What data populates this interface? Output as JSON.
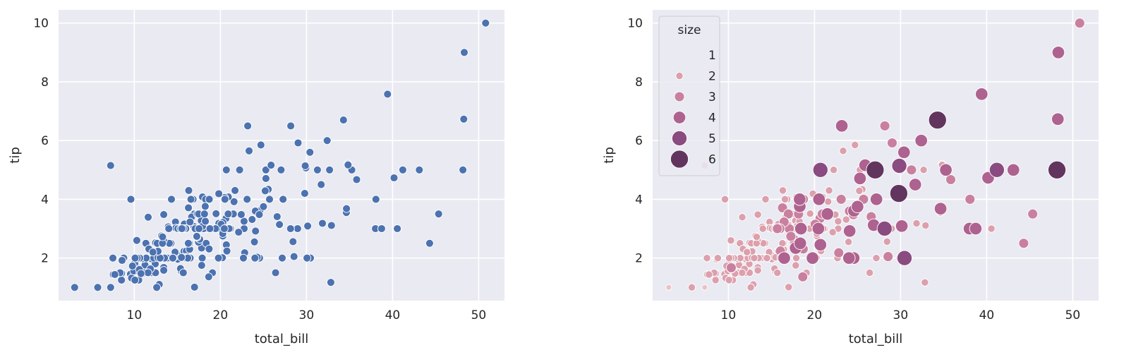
{
  "chart_data": [
    {
      "type": "scatter",
      "xlabel": "total_bill",
      "ylabel": "tip",
      "xlim": [
        1.2,
        53.0
      ],
      "ylim": [
        0.55,
        10.45
      ],
      "xticks": [
        "10",
        "20",
        "30",
        "40",
        "50"
      ],
      "yticks": [
        "2",
        "4",
        "6",
        "8",
        "10"
      ],
      "grid": true,
      "background": "#eaeaf2",
      "color": "#4c72b0",
      "x": [
        16.99,
        10.34,
        21.01,
        23.68,
        24.59,
        25.29,
        8.77,
        26.88,
        15.04,
        14.78,
        10.27,
        35.26,
        15.42,
        18.43,
        14.83,
        21.58,
        10.33,
        16.29,
        16.97,
        20.65,
        17.92,
        20.29,
        15.77,
        39.42,
        19.82,
        17.81,
        13.37,
        12.69,
        21.7,
        19.65,
        9.55,
        18.35,
        15.06,
        20.69,
        17.78,
        24.06,
        16.31,
        16.93,
        18.69,
        31.27,
        16.04,
        17.46,
        13.94,
        9.68,
        30.4,
        18.29,
        22.23,
        32.4,
        28.55,
        18.04,
        12.54,
        10.29,
        34.81,
        9.94,
        25.56,
        19.49,
        38.01,
        26.41,
        11.24,
        48.27,
        20.29,
        13.81,
        11.02,
        18.29,
        17.59,
        20.08,
        16.45,
        3.07,
        20.23,
        15.01,
        12.02,
        17.07,
        26.86,
        25.28,
        14.73,
        10.51,
        17.92,
        27.2,
        22.76,
        17.29,
        19.44,
        16.66,
        10.07,
        32.68,
        15.98,
        34.83,
        13.03,
        18.28,
        24.71,
        21.16,
        28.97,
        22.49,
        5.75,
        16.32,
        22.75,
        40.17,
        27.28,
        12.03,
        21.01,
        12.46,
        11.35,
        15.38,
        44.3,
        22.42,
        20.92,
        15.36,
        20.49,
        25.21,
        18.24,
        14.31,
        14.0,
        7.25,
        38.07,
        23.95,
        25.71,
        17.31,
        29.93,
        10.65,
        12.43,
        24.08,
        11.69,
        13.42,
        14.26,
        15.95,
        12.48,
        29.8,
        8.52,
        14.52,
        11.38,
        22.82,
        19.08,
        20.27,
        11.17,
        12.26,
        18.26,
        8.51,
        10.33,
        14.15,
        16.0,
        13.16,
        17.47,
        34.3,
        41.19,
        27.05,
        16.43,
        8.35,
        18.64,
        11.87,
        9.78,
        7.51,
        14.07,
        13.13,
        17.26,
        24.55,
        19.77,
        29.85,
        48.17,
        25.0,
        13.39,
        16.49,
        21.5,
        12.66,
        16.21,
        13.81,
        17.51,
        24.52,
        20.76,
        31.71,
        10.59,
        10.63,
        50.81,
        15.81,
        7.25,
        31.85,
        16.82,
        32.9,
        17.89,
        14.48,
        9.6,
        34.63,
        34.65,
        23.33,
        45.35,
        23.17,
        40.55,
        20.69,
        20.9,
        30.46,
        18.15,
        23.1,
        15.69,
        19.81,
        28.44,
        15.48,
        16.58,
        7.56,
        10.34,
        43.11,
        13.0,
        13.51,
        18.71,
        12.74,
        13.0,
        16.4,
        20.53,
        16.47,
        26.59,
        38.73,
        24.27,
        12.76,
        30.06,
        25.89,
        48.33,
        13.27,
        28.17,
        12.9,
        28.15,
        11.59,
        7.74,
        30.14,
        12.16,
        13.42,
        8.58,
        15.98,
        13.42,
        16.27,
        10.09,
        20.45,
        13.28,
        22.12,
        24.01,
        15.69,
        11.61,
        10.77,
        15.53,
        10.07,
        12.6,
        32.83,
        35.83,
        29.03,
        27.18,
        22.67,
        17.82,
        18.78
      ],
      "y": [
        1.01,
        1.66,
        3.5,
        3.31,
        3.61,
        4.71,
        2.0,
        3.12,
        1.96,
        3.23,
        1.71,
        5.0,
        1.57,
        3.0,
        3.02,
        3.92,
        1.67,
        3.71,
        3.5,
        3.35,
        4.08,
        2.75,
        2.23,
        7.58,
        3.18,
        2.34,
        2.0,
        2.0,
        4.3,
        3.0,
        1.45,
        2.5,
        3.0,
        2.45,
        3.27,
        3.6,
        2.0,
        3.07,
        2.31,
        5.0,
        2.24,
        2.54,
        3.06,
        1.32,
        5.6,
        3.0,
        5.0,
        6.0,
        2.05,
        3.0,
        2.5,
        2.6,
        5.2,
        1.56,
        4.34,
        3.51,
        3.0,
        1.5,
        1.76,
        6.73,
        3.21,
        2.0,
        1.98,
        3.76,
        2.64,
        3.15,
        2.47,
        1.0,
        2.01,
        2.09,
        1.97,
        3.0,
        3.14,
        5.0,
        2.2,
        1.25,
        3.08,
        4.0,
        3.0,
        2.71,
        3.0,
        3.4,
        1.83,
        5.0,
        2.03,
        5.17,
        2.0,
        4.0,
        5.85,
        3.0,
        3.0,
        3.5,
        1.0,
        4.3,
        3.25,
        4.73,
        4.0,
        1.5,
        3.0,
        1.5,
        2.5,
        3.0,
        2.5,
        3.48,
        4.08,
        1.64,
        4.06,
        4.29,
        3.76,
        4.0,
        3.0,
        1.0,
        4.0,
        2.55,
        4.0,
        3.5,
        5.07,
        1.5,
        1.8,
        2.92,
        2.31,
        1.68,
        2.5,
        2.0,
        2.52,
        4.2,
        1.48,
        2.0,
        2.0,
        2.18,
        1.5,
        2.83,
        1.5,
        2.0,
        3.25,
        1.25,
        2.0,
        2.0,
        2.0,
        2.75,
        3.5,
        6.7,
        5.0,
        5.0,
        2.3,
        1.5,
        1.36,
        1.63,
        1.73,
        2.0,
        2.5,
        2.0,
        2.74,
        2.0,
        2.0,
        5.14,
        5.0,
        3.75,
        2.61,
        2.0,
        3.5,
        2.5,
        2.0,
        2.0,
        3.0,
        3.48,
        2.24,
        4.5,
        1.61,
        2.0,
        10.0,
        3.16,
        5.15,
        3.18,
        4.0,
        3.11,
        2.0,
        2.0,
        4.0,
        3.55,
        3.68,
        5.65,
        3.5,
        6.5,
        3.0,
        5.0,
        3.5,
        2.0,
        3.5,
        4.0,
        1.5,
        4.19,
        2.56,
        2.02,
        4.0,
        1.44,
        2.0,
        5.0,
        2.0,
        2.0,
        4.0,
        2.01,
        2.0,
        2.5,
        4.0,
        3.23,
        3.41,
        3.0,
        2.03,
        2.23,
        2.0,
        5.16,
        9.0,
        2.5,
        6.5,
        1.1,
        3.0,
        1.5,
        1.44,
        3.09,
        2.2,
        3.48,
        1.92,
        3.0,
        1.58,
        2.5,
        2.0,
        3.0,
        2.72,
        2.88,
        2.0,
        3.0,
        3.39,
        1.47,
        3.0,
        1.25,
        1.0,
        1.17,
        4.67,
        5.92,
        2.0,
        2.0,
        1.75,
        3.0
      ]
    },
    {
      "type": "scatter",
      "xlabel": "total_bill",
      "ylabel": "tip",
      "xlim": [
        1.2,
        53.0
      ],
      "ylim": [
        0.55,
        10.45
      ],
      "xticks": [
        "10",
        "20",
        "30",
        "40",
        "50"
      ],
      "yticks": [
        "2",
        "4",
        "6",
        "8",
        "10"
      ],
      "grid": true,
      "background": "#eaeaf2",
      "hue": "size",
      "legend": {
        "title": "size",
        "placement": "upper-left",
        "labels": [
          "1",
          "2",
          "3",
          "4",
          "5",
          "6"
        ]
      },
      "size_colors": {
        "1": "#ecc1c3",
        "2": "#dca0ad",
        "3": "#c9809e",
        "4": "#ae628f",
        "5": "#8a4b80",
        "6": "#62355f"
      },
      "x": [
        16.99,
        10.34,
        21.01,
        23.68,
        24.59,
        25.29,
        8.77,
        26.88,
        15.04,
        14.78,
        10.27,
        35.26,
        15.42,
        18.43,
        14.83,
        21.58,
        10.33,
        16.29,
        16.97,
        20.65,
        17.92,
        20.29,
        15.77,
        39.42,
        19.82,
        17.81,
        13.37,
        12.69,
        21.7,
        19.65,
        9.55,
        18.35,
        15.06,
        20.69,
        17.78,
        24.06,
        16.31,
        16.93,
        18.69,
        31.27,
        16.04,
        17.46,
        13.94,
        9.68,
        30.4,
        18.29,
        22.23,
        32.4,
        28.55,
        18.04,
        12.54,
        10.29,
        34.81,
        9.94,
        25.56,
        19.49,
        38.01,
        26.41,
        11.24,
        48.27,
        20.29,
        13.81,
        11.02,
        18.29,
        17.59,
        20.08,
        16.45,
        3.07,
        20.23,
        15.01,
        12.02,
        17.07,
        26.86,
        25.28,
        14.73,
        10.51,
        17.92,
        27.2,
        22.76,
        17.29,
        19.44,
        16.66,
        10.07,
        32.68,
        15.98,
        34.83,
        13.03,
        18.28,
        24.71,
        21.16,
        28.97,
        22.49,
        5.75,
        16.32,
        22.75,
        40.17,
        27.28,
        12.03,
        21.01,
        12.46,
        11.35,
        15.38,
        44.3,
        22.42,
        20.92,
        15.36,
        20.49,
        25.21,
        18.24,
        14.31,
        14.0,
        7.25,
        38.07,
        23.95,
        25.71,
        17.31,
        29.93,
        10.65,
        12.43,
        24.08,
        11.69,
        13.42,
        14.26,
        15.95,
        12.48,
        29.8,
        8.52,
        14.52,
        11.38,
        22.82,
        19.08,
        20.27,
        11.17,
        12.26,
        18.26,
        8.51,
        10.33,
        14.15,
        16.0,
        13.16,
        17.47,
        34.3,
        41.19,
        27.05,
        16.43,
        8.35,
        18.64,
        11.87,
        9.78,
        7.51,
        14.07,
        13.13,
        17.26,
        24.55,
        19.77,
        29.85,
        48.17,
        25.0,
        13.39,
        16.49,
        21.5,
        12.66,
        16.21,
        13.81,
        17.51,
        24.52,
        20.76,
        31.71,
        10.59,
        10.63,
        50.81,
        15.81,
        7.25,
        31.85,
        16.82,
        32.9,
        17.89,
        14.48,
        9.6,
        34.63,
        34.65,
        23.33,
        45.35,
        23.17,
        40.55,
        20.69,
        20.9,
        30.46,
        18.15,
        23.1,
        15.69,
        19.81,
        28.44,
        15.48,
        16.58,
        7.56,
        10.34,
        43.11,
        13.0,
        13.51,
        18.71,
        12.74,
        13.0,
        16.4,
        20.53,
        16.47,
        26.59,
        38.73,
        24.27,
        12.76,
        30.06,
        25.89,
        48.33,
        13.27,
        28.17,
        12.9,
        28.15,
        11.59,
        7.74,
        30.14,
        12.16,
        13.42,
        8.58,
        15.98,
        13.42,
        16.27,
        10.09,
        20.45,
        13.28,
        22.12,
        24.01,
        15.69,
        11.61,
        10.77,
        15.53,
        10.07,
        12.6,
        32.83,
        35.83,
        29.03,
        27.18,
        22.67,
        17.82,
        18.78
      ],
      "y": [
        1.01,
        1.66,
        3.5,
        3.31,
        3.61,
        4.71,
        2.0,
        3.12,
        1.96,
        3.23,
        1.71,
        5.0,
        1.57,
        3.0,
        3.02,
        3.92,
        1.67,
        3.71,
        3.5,
        3.35,
        4.08,
        2.75,
        2.23,
        7.58,
        3.18,
        2.34,
        2.0,
        2.0,
        4.3,
        3.0,
        1.45,
        2.5,
        3.0,
        2.45,
        3.27,
        3.6,
        2.0,
        3.07,
        2.31,
        5.0,
        2.24,
        2.54,
        3.06,
        1.32,
        5.6,
        3.0,
        5.0,
        6.0,
        2.05,
        3.0,
        2.5,
        2.6,
        5.2,
        1.56,
        4.34,
        3.51,
        3.0,
        1.5,
        1.76,
        6.73,
        3.21,
        2.0,
        1.98,
        3.76,
        2.64,
        3.15,
        2.47,
        1.0,
        2.01,
        2.09,
        1.97,
        3.0,
        3.14,
        5.0,
        2.2,
        1.25,
        3.08,
        4.0,
        3.0,
        2.71,
        3.0,
        3.4,
        1.83,
        5.0,
        2.03,
        5.17,
        2.0,
        4.0,
        5.85,
        3.0,
        3.0,
        3.5,
        1.0,
        4.3,
        3.25,
        4.73,
        4.0,
        1.5,
        3.0,
        1.5,
        2.5,
        3.0,
        2.5,
        3.48,
        4.08,
        1.64,
        4.06,
        4.29,
        3.76,
        4.0,
        3.0,
        1.0,
        4.0,
        2.55,
        4.0,
        3.5,
        5.07,
        1.5,
        1.8,
        2.92,
        2.31,
        1.68,
        2.5,
        2.0,
        2.52,
        4.2,
        1.48,
        2.0,
        2.0,
        2.18,
        1.5,
        2.83,
        1.5,
        2.0,
        3.25,
        1.25,
        2.0,
        2.0,
        2.0,
        2.75,
        3.5,
        6.7,
        5.0,
        5.0,
        2.3,
        1.5,
        1.36,
        1.63,
        1.73,
        2.0,
        2.5,
        2.0,
        2.74,
        2.0,
        2.0,
        5.14,
        5.0,
        3.75,
        2.61,
        2.0,
        3.5,
        2.5,
        2.0,
        2.0,
        3.0,
        3.48,
        2.24,
        4.5,
        1.61,
        2.0,
        10.0,
        3.16,
        5.15,
        3.18,
        4.0,
        3.11,
        2.0,
        2.0,
        4.0,
        3.55,
        3.68,
        5.65,
        3.5,
        6.5,
        3.0,
        5.0,
        3.5,
        2.0,
        3.5,
        4.0,
        1.5,
        4.19,
        2.56,
        2.02,
        4.0,
        1.44,
        2.0,
        5.0,
        2.0,
        2.0,
        4.0,
        2.01,
        2.0,
        2.5,
        4.0,
        3.23,
        3.41,
        3.0,
        2.03,
        2.23,
        2.0,
        5.16,
        9.0,
        2.5,
        6.5,
        1.1,
        3.0,
        1.5,
        1.44,
        3.09,
        2.2,
        3.48,
        1.92,
        3.0,
        1.58,
        2.5,
        2.0,
        3.0,
        2.72,
        2.88,
        2.0,
        3.0,
        3.39,
        1.47,
        3.0,
        1.25,
        1.0,
        1.17,
        4.67,
        5.92,
        2.0,
        2.0,
        1.75,
        3.0
      ],
      "size": [
        2,
        3,
        3,
        2,
        4,
        4,
        2,
        4,
        2,
        2,
        2,
        4,
        2,
        4,
        2,
        2,
        3,
        3,
        3,
        3,
        2,
        2,
        2,
        4,
        2,
        4,
        2,
        2,
        2,
        2,
        2,
        4,
        2,
        4,
        2,
        3,
        3,
        3,
        3,
        3,
        3,
        2,
        2,
        2,
        4,
        2,
        2,
        4,
        3,
        2,
        2,
        2,
        2,
        2,
        2,
        2,
        4,
        2,
        2,
        4,
        2,
        2,
        2,
        4,
        3,
        3,
        2,
        1,
        2,
        2,
        2,
        3,
        2,
        2,
        2,
        2,
        2,
        4,
        2,
        2,
        2,
        2,
        2,
        2,
        2,
        2,
        2,
        4,
        2,
        2,
        2,
        2,
        2,
        2,
        2,
        4,
        2,
        2,
        2,
        2,
        2,
        2,
        3,
        2,
        2,
        2,
        2,
        2,
        2,
        2,
        2,
        1,
        3,
        2,
        3,
        2,
        4,
        2,
        2,
        4,
        2,
        2,
        2,
        2,
        2,
        6,
        2,
        2,
        2,
        3,
        2,
        2,
        2,
        2,
        2,
        2,
        2,
        2,
        2,
        2,
        2,
        6,
        5,
        6,
        2,
        2,
        3,
        2,
        2,
        2,
        2,
        2,
        3,
        4,
        4,
        5,
        6,
        4,
        2,
        4,
        4,
        2,
        3,
        2,
        2,
        3,
        2,
        4,
        2,
        2,
        3,
        2,
        2,
        2,
        2,
        2,
        2,
        2,
        2,
        2,
        4,
        2,
        3,
        4,
        2,
        5,
        3,
        5,
        3,
        3,
        2,
        2,
        2,
        2,
        2,
        2,
        2,
        4,
        2,
        2,
        3,
        2,
        2,
        2,
        4,
        3,
        3,
        4,
        2,
        2,
        3,
        4,
        4,
        2,
        3,
        2,
        5,
        2,
        2,
        4,
        2,
        2,
        1,
        3,
        2,
        2,
        2,
        4,
        2,
        2,
        4,
        3,
        2,
        2,
        2,
        2,
        2,
        2,
        3,
        3,
        2,
        2,
        2,
        2
      ]
    }
  ]
}
